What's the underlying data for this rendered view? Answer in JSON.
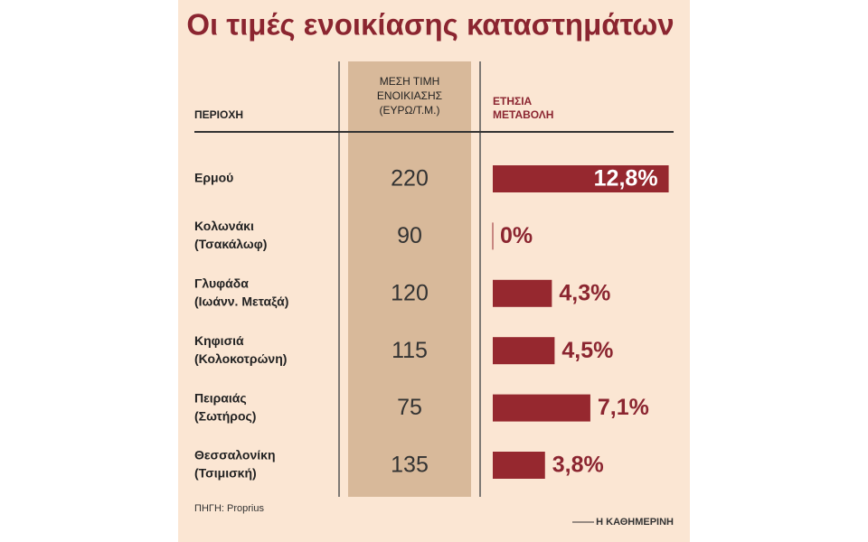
{
  "chart_data": {
    "type": "bar",
    "title": "Οι τιμές ενοικίασης καταστημάτων",
    "column_headers": {
      "region": "ΠΕΡΙΟΧΗ",
      "price": [
        "ΜΕΣΗ ΤΙΜΗ",
        "ΕΝΟΙΚΙΑΣΗΣ",
        "(ΕΥΡΩ/Τ.Μ.)"
      ],
      "change": [
        "ΕΤΗΣΙΑ",
        "ΜΕΤΑΒΟΛΗ"
      ]
    },
    "categories": [
      [
        "Ερμού"
      ],
      [
        "Κολωνάκι",
        "(Τσακάλωφ)"
      ],
      [
        "Γλυφάδα",
        "(Ιωάνν. Μεταξά)"
      ],
      [
        "Κηφισιά",
        "(Κολοκοτρώνη)"
      ],
      [
        "Πειραιάς",
        "(Σωτήρος)"
      ],
      [
        "Θεσσαλονίκη",
        "(Τσιμισκή)"
      ]
    ],
    "prices": [
      220,
      90,
      120,
      115,
      75,
      135
    ],
    "values": [
      12.8,
      0,
      4.3,
      4.5,
      7.1,
      3.8
    ],
    "value_labels": [
      "12,8%",
      "0%",
      "4,3%",
      "4,5%",
      "7,1%",
      "3,8%"
    ],
    "color": "#96282f",
    "source": "ΠΗΓΗ: Proprius",
    "credit": "Η ΚΑΘΗΜΕΡΙΝΗ"
  }
}
